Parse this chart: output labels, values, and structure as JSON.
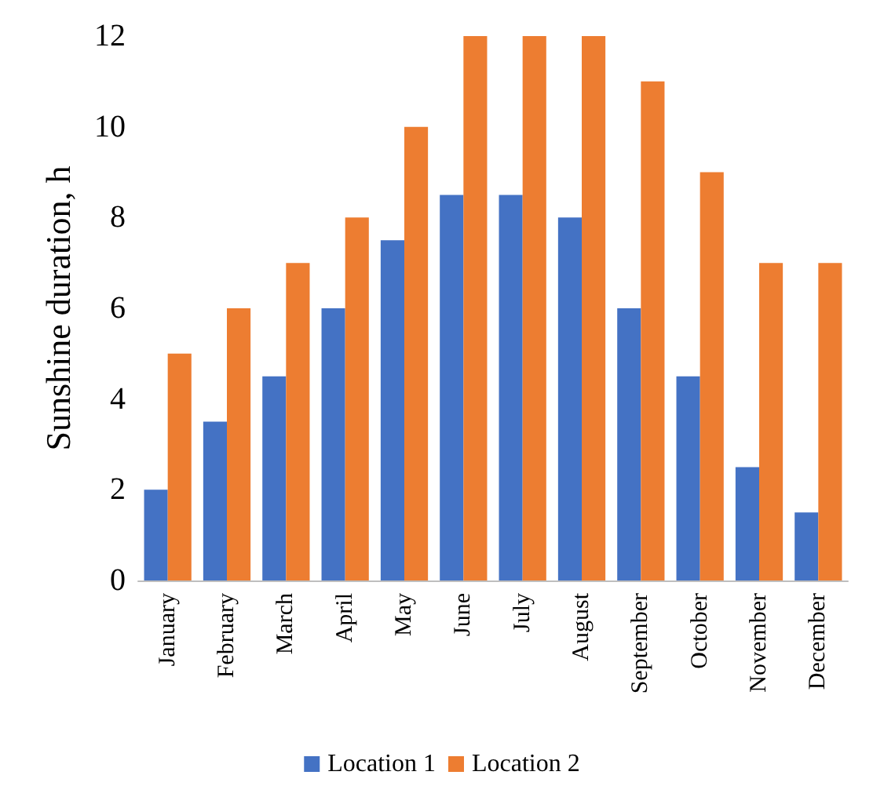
{
  "chart_data": {
    "type": "bar",
    "ylabel": "Sunshine duration, h",
    "categories": [
      "January",
      "February",
      "March",
      "April",
      "May",
      "June",
      "July",
      "August",
      "September",
      "October",
      "November",
      "December"
    ],
    "series": [
      {
        "name": "Location 1",
        "color": "#4472c4",
        "values": [
          2,
          3.5,
          4.5,
          6,
          7.5,
          8.5,
          8.5,
          8,
          6,
          4.5,
          2.5,
          1.5
        ]
      },
      {
        "name": "Location 2",
        "color": "#ed7d31",
        "values": [
          5,
          6,
          7,
          8,
          10,
          12,
          12,
          12,
          11,
          9,
          7,
          7
        ]
      }
    ],
    "ylim": [
      0,
      12
    ],
    "yticks": [
      0,
      2,
      4,
      6,
      8,
      10,
      12
    ],
    "grid": false,
    "legend": "bottom"
  }
}
